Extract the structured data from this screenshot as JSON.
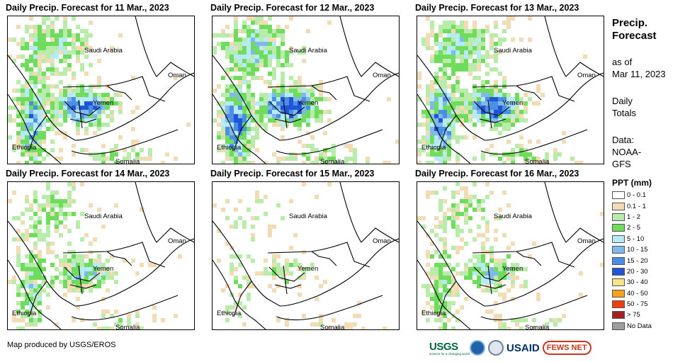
{
  "panels": [
    {
      "title": "Daily Precip. Forecast for 11 Mar., 2023",
      "intensity": 0.85
    },
    {
      "title": "Daily Precip. Forecast for 12 Mar., 2023",
      "intensity": 1.0
    },
    {
      "title": "Daily Precip. Forecast for 13 Mar., 2023",
      "intensity": 0.95
    },
    {
      "title": "Daily Precip. Forecast for 14 Mar., 2023",
      "intensity": 0.6
    },
    {
      "title": "Daily Precip. Forecast for 15 Mar., 2023",
      "intensity": 0.3
    },
    {
      "title": "Daily Precip. Forecast for 16 Mar., 2023",
      "intensity": 0.55
    }
  ],
  "places": {
    "saudi": "Saudi Arabia",
    "oman": "Oman",
    "yemen": "Yemen",
    "ethiopia": "Ethiopia",
    "somalia": "Somalia"
  },
  "side": {
    "title_line1": "Precip.",
    "title_line2": "Forecast",
    "asof_line1": "as of",
    "asof_line2": "Mar 11, 2023",
    "daily_line1": "Daily",
    "daily_line2": "Totals",
    "data_line1": "Data:",
    "data_line2": "NOAA-",
    "data_line3": "GFS"
  },
  "legend": {
    "title": "PPT (mm)",
    "items": [
      {
        "label": "0 - 0.1",
        "color": "#ffffff"
      },
      {
        "label": "0.1 - 1",
        "color": "#f2dcb6"
      },
      {
        "label": "1 - 2",
        "color": "#b9ecaa"
      },
      {
        "label": "2 - 5",
        "color": "#6fdc5e"
      },
      {
        "label": "5 - 10",
        "color": "#b6eaf7"
      },
      {
        "label": "10 - 15",
        "color": "#7fb8ea"
      },
      {
        "label": "15 - 20",
        "color": "#4a8fe3"
      },
      {
        "label": "20 - 30",
        "color": "#1f55d6"
      },
      {
        "label": "30 - 40",
        "color": "#f7e484"
      },
      {
        "label": "40 - 50",
        "color": "#f6a21b"
      },
      {
        "label": "50 - 75",
        "color": "#ef3d12"
      },
      {
        "label": "> 75",
        "color": "#a52121"
      },
      {
        "label": "No Data",
        "color": "#9e9e9e"
      }
    ]
  },
  "footer": "Map produced by USGS/EROS",
  "logos": {
    "usgs": "USGS",
    "usgs_tagline": "science for a changing world",
    "usaid": "USAID",
    "fews": "FEWS NET"
  }
}
